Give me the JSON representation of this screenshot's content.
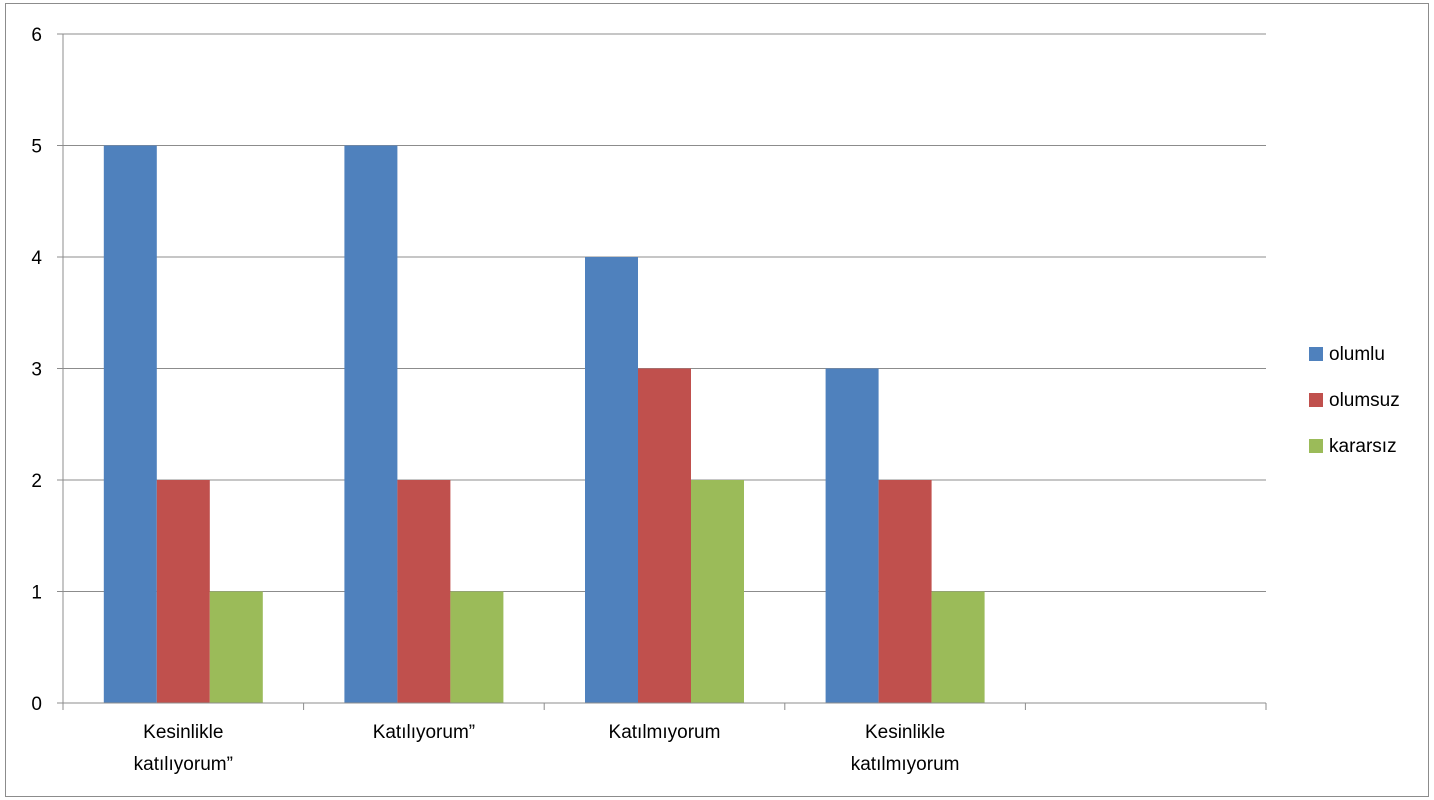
{
  "chart_data": {
    "type": "bar",
    "categories": [
      [
        "Kesinlikle",
        "katılıyorum”"
      ],
      [
        "Katılıyorum”"
      ],
      [
        "Katılmıyorum"
      ],
      [
        "Kesinlikle",
        "katılmıyorum"
      ],
      [
        ""
      ]
    ],
    "series": [
      {
        "name": "olumlu",
        "color": "#4F81BD",
        "values": [
          5,
          5,
          4,
          3,
          null
        ]
      },
      {
        "name": "olumsuz",
        "color": "#C0504D",
        "values": [
          2,
          2,
          3,
          2,
          null
        ]
      },
      {
        "name": "kararsız",
        "color": "#9BBB59",
        "values": [
          1,
          1,
          2,
          1,
          null
        ]
      }
    ],
    "ylim": [
      0,
      6
    ],
    "yticks": [
      "0",
      "1",
      "2",
      "3",
      "4",
      "5",
      "6"
    ],
    "grid": true,
    "legend_position": "right"
  }
}
